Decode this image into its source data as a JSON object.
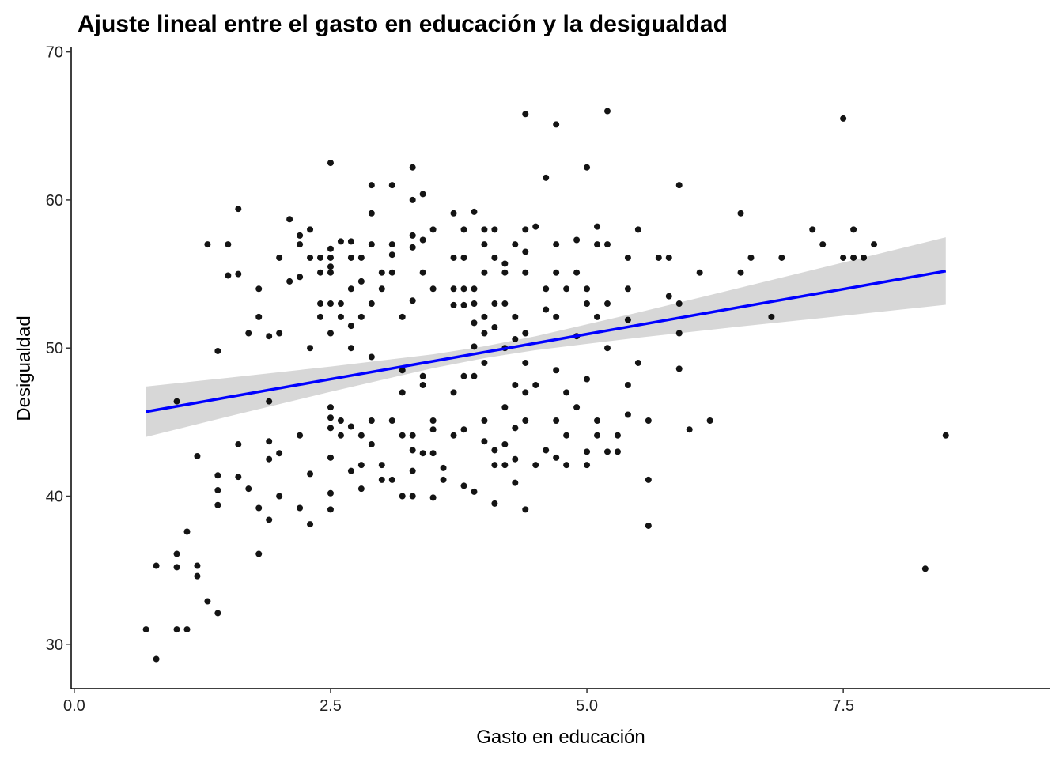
{
  "chart_data": {
    "type": "scatter",
    "title": "Ajuste lineal entre el gasto en educación y la desigualdad",
    "x_label": "Gasto en educación",
    "y_label": "Desigualdad",
    "color": "#000000",
    "x": [
      0.7,
      0.8,
      0.8,
      1.0,
      1.0,
      1.0,
      1.0,
      1.1,
      1.1,
      1.2,
      1.2,
      1.2,
      1.3,
      1.3,
      1.4,
      1.4,
      1.4,
      1.4,
      1.4,
      1.5,
      1.5,
      1.6,
      1.6,
      1.6,
      1.6,
      1.7,
      1.7,
      1.8,
      1.8,
      1.8,
      1.8,
      1.9,
      1.9,
      1.9,
      1.9,
      1.9,
      2.0,
      2.0,
      2.0,
      2.0,
      2.1,
      2.1,
      2.2,
      2.2,
      2.2,
      2.2,
      2.2,
      2.3,
      2.3,
      2.3,
      2.3,
      2.3,
      2.4,
      2.4,
      2.4,
      2.4,
      2.5,
      2.5,
      2.5,
      2.5,
      2.5,
      2.5,
      2.5,
      2.5,
      2.5,
      2.5,
      2.5,
      2.5,
      2.5,
      2.6,
      2.6,
      2.6,
      2.6,
      2.6,
      2.7,
      2.7,
      2.7,
      2.7,
      2.7,
      2.7,
      2.7,
      2.8,
      2.8,
      2.8,
      2.8,
      2.8,
      2.8,
      2.9,
      2.9,
      2.9,
      2.9,
      2.9,
      2.9,
      2.9,
      3.0,
      3.0,
      3.0,
      3.0,
      3.1,
      3.1,
      3.1,
      3.1,
      3.1,
      3.1,
      3.2,
      3.2,
      3.2,
      3.2,
      3.2,
      3.3,
      3.3,
      3.3,
      3.3,
      3.3,
      3.3,
      3.3,
      3.3,
      3.3,
      3.4,
      3.4,
      3.4,
      3.4,
      3.4,
      3.4,
      3.5,
      3.5,
      3.5,
      3.5,
      3.5,
      3.5,
      3.6,
      3.6,
      3.7,
      3.7,
      3.7,
      3.7,
      3.7,
      3.7,
      3.8,
      3.8,
      3.8,
      3.8,
      3.8,
      3.8,
      3.8,
      3.9,
      3.9,
      3.9,
      3.9,
      3.9,
      3.9,
      3.9,
      4.0,
      4.0,
      4.0,
      4.0,
      4.0,
      4.0,
      4.0,
      4.0,
      4.1,
      4.1,
      4.1,
      4.1,
      4.1,
      4.1,
      4.1,
      4.2,
      4.2,
      4.2,
      4.2,
      4.2,
      4.2,
      4.2,
      4.3,
      4.3,
      4.3,
      4.3,
      4.3,
      4.3,
      4.3,
      4.4,
      4.4,
      4.4,
      4.4,
      4.4,
      4.4,
      4.4,
      4.4,
      4.4,
      4.5,
      4.5,
      4.5,
      4.6,
      4.6,
      4.6,
      4.6,
      4.7,
      4.7,
      4.7,
      4.7,
      4.7,
      4.7,
      4.7,
      4.8,
      4.8,
      4.8,
      4.8,
      4.9,
      4.9,
      4.9,
      4.9,
      5.0,
      5.0,
      5.0,
      5.0,
      5.0,
      5.0,
      5.1,
      5.1,
      5.1,
      5.1,
      5.1,
      5.2,
      5.2,
      5.2,
      5.2,
      5.2,
      5.3,
      5.3,
      5.4,
      5.4,
      5.4,
      5.4,
      5.4,
      5.5,
      5.5,
      5.6,
      5.6,
      5.6,
      5.7,
      5.8,
      5.8,
      5.9,
      5.9,
      5.9,
      5.9,
      6.0,
      6.1,
      6.2,
      6.5,
      6.5,
      6.6,
      6.8,
      6.9,
      7.2,
      7.3,
      7.5,
      7.5,
      7.6,
      7.6,
      7.7,
      7.8,
      8.3,
      8.5
    ],
    "y": [
      31.0,
      29.0,
      35.3,
      36.1,
      35.2,
      31.0,
      46.4,
      31.0,
      37.6,
      42.7,
      35.3,
      34.6,
      32.9,
      57.0,
      32.1,
      39.4,
      40.4,
      41.4,
      49.8,
      57.0,
      54.9,
      55.0,
      59.4,
      43.5,
      41.3,
      51.0,
      40.5,
      54.0,
      52.1,
      39.2,
      36.1,
      50.8,
      46.4,
      43.7,
      42.5,
      38.4,
      56.1,
      51.0,
      42.9,
      40.0,
      58.7,
      54.5,
      57.6,
      57.0,
      54.8,
      44.1,
      39.2,
      58.0,
      56.1,
      50.0,
      41.5,
      38.1,
      56.1,
      55.1,
      53.0,
      52.1,
      62.5,
      56.7,
      56.1,
      55.5,
      55.1,
      53.0,
      51.0,
      46.0,
      45.3,
      44.6,
      42.6,
      40.2,
      39.1,
      57.2,
      53.0,
      52.1,
      45.1,
      44.1,
      57.2,
      56.1,
      54.0,
      51.5,
      50.0,
      44.7,
      41.7,
      56.1,
      54.5,
      52.1,
      44.1,
      42.1,
      40.5,
      61.0,
      59.1,
      57.0,
      53.0,
      49.4,
      45.1,
      43.5,
      55.1,
      54.0,
      42.1,
      41.1,
      61.0,
      57.0,
      56.3,
      55.1,
      45.1,
      41.1,
      52.1,
      48.5,
      47.0,
      44.1,
      40.0,
      62.2,
      60.0,
      57.6,
      56.8,
      53.2,
      44.1,
      43.1,
      41.7,
      40.0,
      60.4,
      57.3,
      55.1,
      48.1,
      47.5,
      42.9,
      58.0,
      54.0,
      45.1,
      44.5,
      42.9,
      39.9,
      41.9,
      41.1,
      59.1,
      56.1,
      54.0,
      52.9,
      47.0,
      44.1,
      58.0,
      56.1,
      54.0,
      52.9,
      48.1,
      44.5,
      40.7,
      59.2,
      54.0,
      53.0,
      51.7,
      50.1,
      48.1,
      40.3,
      58.0,
      57.0,
      55.1,
      52.1,
      51.0,
      49.0,
      45.1,
      43.7,
      58.0,
      56.1,
      53.0,
      51.4,
      43.1,
      42.1,
      39.5,
      55.7,
      55.1,
      53.0,
      50.0,
      46.0,
      43.5,
      42.1,
      57.0,
      52.1,
      50.6,
      47.5,
      44.6,
      42.5,
      40.9,
      65.8,
      58.0,
      56.5,
      55.1,
      51.0,
      49.0,
      47.0,
      45.1,
      39.1,
      58.2,
      47.5,
      42.1,
      61.5,
      54.0,
      52.6,
      43.1,
      65.1,
      57.0,
      55.1,
      52.1,
      48.5,
      45.1,
      42.6,
      54.0,
      47.0,
      44.1,
      42.1,
      57.3,
      55.1,
      50.8,
      46.0,
      62.2,
      54.0,
      53.0,
      47.9,
      43.0,
      42.1,
      58.2,
      57.0,
      52.1,
      45.1,
      44.1,
      66.0,
      57.0,
      53.0,
      50.0,
      43.0,
      44.1,
      43.0,
      56.1,
      54.0,
      51.9,
      47.5,
      45.5,
      58.0,
      49.0,
      45.1,
      41.1,
      38.0,
      56.1,
      56.1,
      53.5,
      61.0,
      53.0,
      51.0,
      48.6,
      44.5,
      55.1,
      45.1,
      59.1,
      55.1,
      56.1,
      52.1,
      56.1,
      58.0,
      57.0,
      65.5,
      56.1,
      58.0,
      56.1,
      56.1,
      57.0,
      35.1,
      44.1
    ],
    "fit": {
      "color": "#0000ff",
      "band_color": "#d3d3d3",
      "x": [
        0.7,
        1.5,
        2.5,
        3.5,
        4.0,
        4.5,
        5.5,
        6.5,
        7.5,
        8.5
      ],
      "y": [
        45.7,
        46.68,
        47.9,
        49.11,
        49.72,
        50.33,
        51.55,
        52.77,
        53.98,
        55.2
      ],
      "lower": [
        44.0,
        45.37,
        47.05,
        48.64,
        49.32,
        49.86,
        50.7,
        51.46,
        52.18,
        52.92
      ],
      "upper": [
        47.4,
        47.99,
        48.75,
        49.58,
        50.12,
        50.8,
        52.4,
        54.08,
        55.78,
        57.48
      ]
    },
    "xlim": [
      -0.03,
      9.52
    ],
    "ylim": [
      27.0,
      70.3
    ],
    "xticks": [
      {
        "value": 0,
        "label": "0.0"
      },
      2.5,
      {
        "value": 5,
        "label": "5.0"
      },
      7.5
    ],
    "yticks": [
      30,
      40,
      50,
      60,
      70
    ]
  }
}
